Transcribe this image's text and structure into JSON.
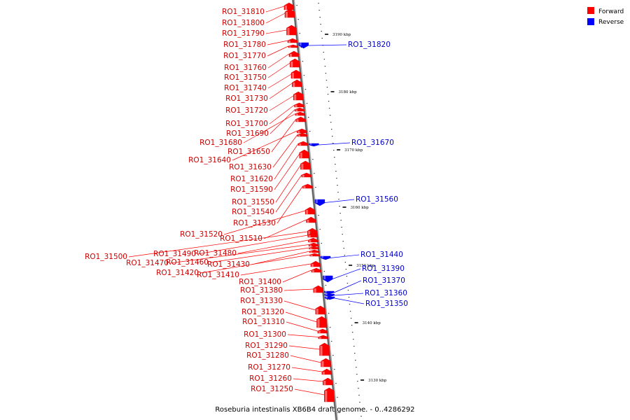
{
  "caption": "Roseburia intestinalis XB6B4 draft genome. - 0..4286292",
  "legend": [
    {
      "label": "Forward",
      "color": "#ff0000"
    },
    {
      "label": "Reverse",
      "color": "#0000ff"
    }
  ],
  "colors": {
    "forward": "#ff0000",
    "forward_light": "#ff6a6a",
    "reverse": "#0000ff",
    "reverse_light": "#5a5aff",
    "forward_label": "#cc0000",
    "reverse_label": "#0000cc"
  },
  "ticks": [
    {
      "label": "3190 kbp"
    },
    {
      "label": "3180 kbp"
    },
    {
      "label": "3170 kbp"
    },
    {
      "label": "3160 kbp"
    },
    {
      "label": "3150 kbp"
    },
    {
      "label": "3140 kbp"
    },
    {
      "label": "3130 kbp"
    }
  ],
  "forward_genes": [
    {
      "label": "RO1_31810"
    },
    {
      "label": "RO1_31800"
    },
    {
      "label": "RO1_31790"
    },
    {
      "label": "RO1_31780"
    },
    {
      "label": "RO1_31770"
    },
    {
      "label": "RO1_31760"
    },
    {
      "label": "RO1_31750"
    },
    {
      "label": "RO1_31740"
    },
    {
      "label": "RO1_31730"
    },
    {
      "label": "RO1_31720"
    },
    {
      "label": "RO1_31700"
    },
    {
      "label": "RO1_31690"
    },
    {
      "label": "RO1_31680"
    },
    {
      "label": "RO1_31650"
    },
    {
      "label": "RO1_31640"
    },
    {
      "label": "RO1_31630"
    },
    {
      "label": "RO1_31620"
    },
    {
      "label": "RO1_31590"
    },
    {
      "label": "RO1_31550"
    },
    {
      "label": "RO1_31540"
    },
    {
      "label": "RO1_31530"
    },
    {
      "label": "RO1_31520"
    },
    {
      "label": "RO1_31510"
    },
    {
      "label": "RO1_31500"
    },
    {
      "label": "RO1_31490"
    },
    {
      "label": "RO1_31480"
    },
    {
      "label": "RO1_31470"
    },
    {
      "label": "RO1_31460"
    },
    {
      "label": "RO1_31430"
    },
    {
      "label": "RO1_31420"
    },
    {
      "label": "RO1_31410"
    },
    {
      "label": "RO1_31400"
    },
    {
      "label": "RO1_31380"
    },
    {
      "label": "RO1_31330"
    },
    {
      "label": "RO1_31320"
    },
    {
      "label": "RO1_31310"
    },
    {
      "label": "RO1_31300"
    },
    {
      "label": "RO1_31290"
    },
    {
      "label": "RO1_31280"
    },
    {
      "label": "RO1_31270"
    },
    {
      "label": "RO1_31260"
    },
    {
      "label": "RO1_31250"
    }
  ],
  "reverse_genes": [
    {
      "label": "RO1_31820"
    },
    {
      "label": "RO1_31670"
    },
    {
      "label": "RO1_31560"
    },
    {
      "label": "RO1_31440"
    },
    {
      "label": "RO1_31390"
    },
    {
      "label": "RO1_31370"
    },
    {
      "label": "RO1_31360"
    },
    {
      "label": "RO1_31350"
    }
  ]
}
